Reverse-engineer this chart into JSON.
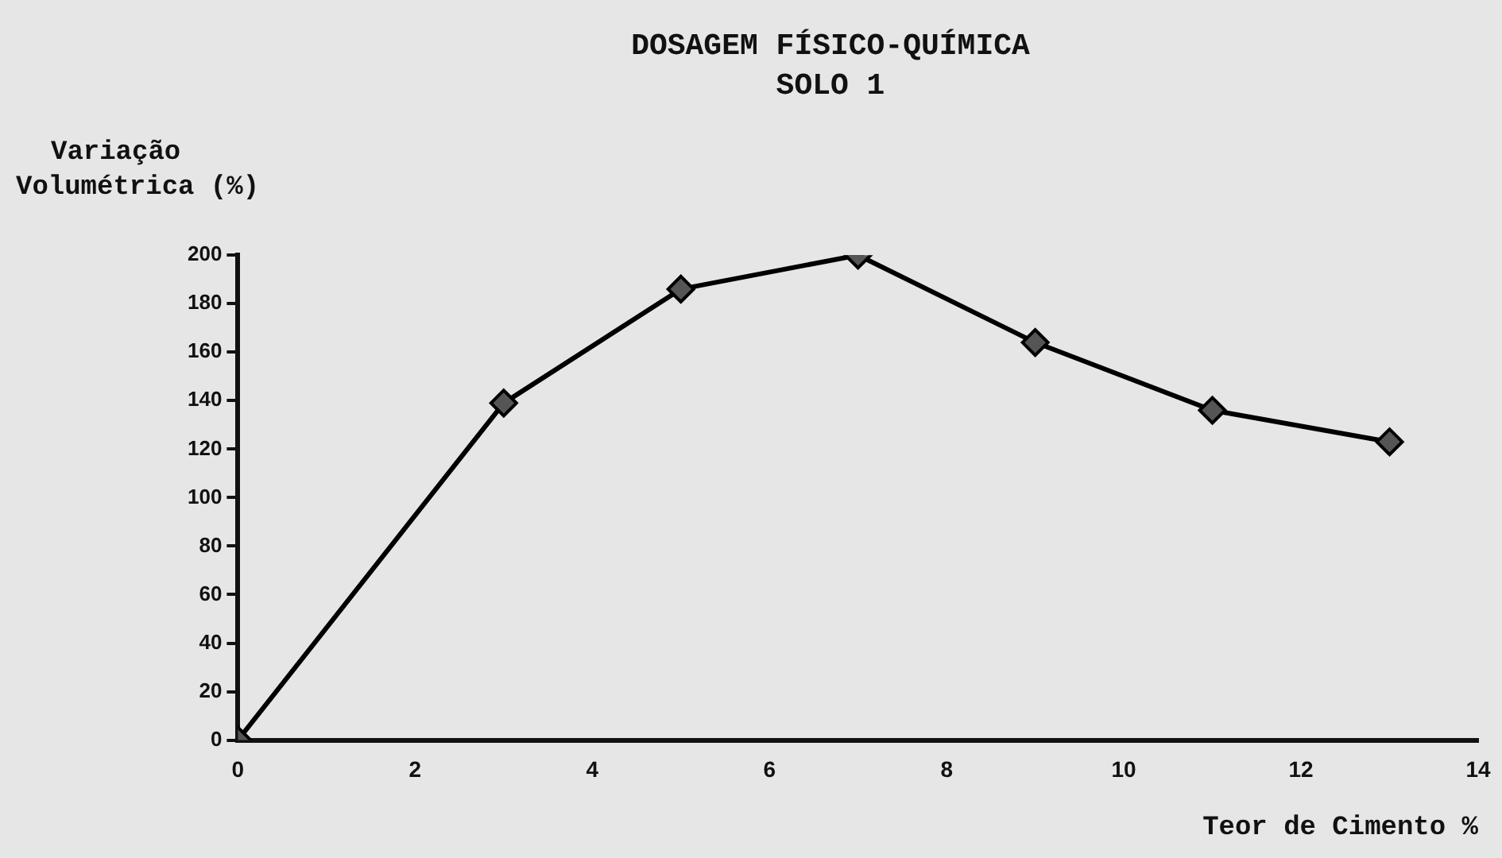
{
  "chart_data": {
    "type": "line",
    "title": "DOSAGEM FÍSICO-QUÍMICA",
    "subtitle": "SOLO 1",
    "xlabel": "Teor de Cimento %",
    "ylabel": "Variação Volumétrica (%)",
    "x": [
      0,
      3,
      5,
      7,
      9,
      11,
      13
    ],
    "series": [
      {
        "color": "#000000",
        "values": [
          0,
          139,
          186,
          200,
          164,
          136,
          123
        ]
      }
    ],
    "xlim": [
      0,
      14
    ],
    "xticks": [
      0,
      2,
      4,
      6,
      8,
      10,
      12,
      14
    ],
    "ylim": [
      0,
      200
    ],
    "yticks": [
      0,
      20,
      40,
      60,
      80,
      100,
      120,
      140,
      160,
      180,
      200
    ],
    "grid": false,
    "legend": false,
    "marker": "diamond",
    "line_style": "solid"
  }
}
